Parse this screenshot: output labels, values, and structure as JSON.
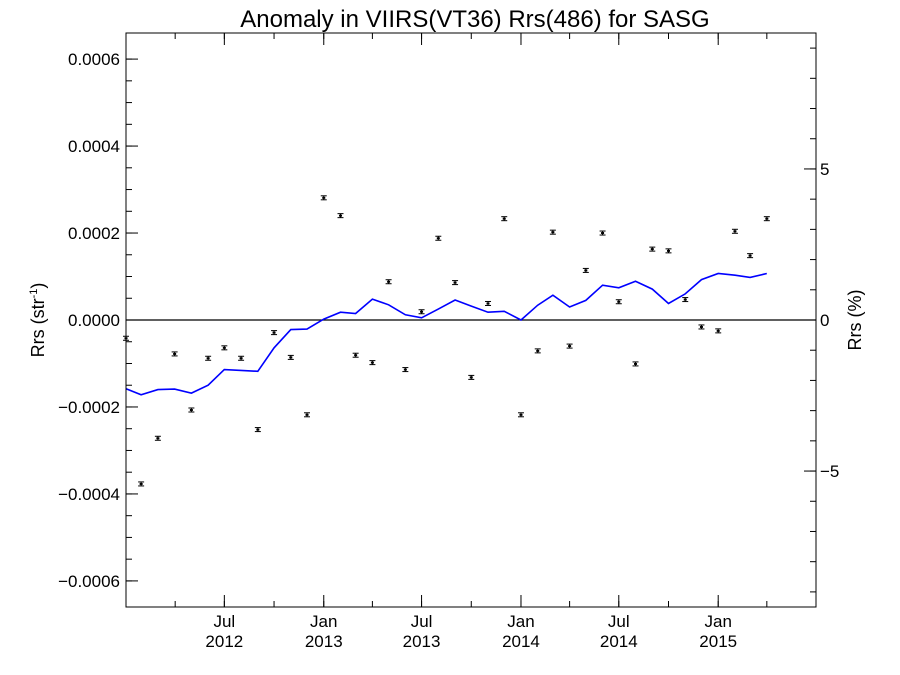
{
  "chart_data": {
    "type": "scatter",
    "title": "Anomaly in VIIRS(VT36) Rrs(486) for SASG",
    "ylabel": "Rrs (str",
    "ylabel_sup": "-1",
    "ylabel_close": ")",
    "y2label": "Rrs (%)",
    "xlim": [
      "2012-01-01",
      "2015-07-01"
    ],
    "ylim": [
      -0.00066,
      0.00066
    ],
    "y2lim": [
      -9.5,
      9.5
    ],
    "x_ticks": [
      {
        "date": "2012-07-01",
        "month": "Jul",
        "year": "2012"
      },
      {
        "date": "2013-01-01",
        "month": "Jan",
        "year": "2013"
      },
      {
        "date": "2013-07-01",
        "month": "Jul",
        "year": "2013"
      },
      {
        "date": "2014-01-01",
        "month": "Jan",
        "year": "2014"
      },
      {
        "date": "2014-07-01",
        "month": "Jul",
        "year": "2014"
      },
      {
        "date": "2015-01-01",
        "month": "Jan",
        "year": "2015"
      }
    ],
    "y_ticks": [
      {
        "value": 0.0006,
        "label": "0.0006"
      },
      {
        "value": 0.0004,
        "label": "0.0004"
      },
      {
        "value": 0.0002,
        "label": "0.0002"
      },
      {
        "value": 0.0,
        "label": "0.0000"
      },
      {
        "value": -0.0002,
        "label": "−0.0002"
      },
      {
        "value": -0.0004,
        "label": "−0.0004"
      },
      {
        "value": -0.0006,
        "label": "−0.0006"
      }
    ],
    "y2_ticks": [
      {
        "value": 5,
        "label": "5"
      },
      {
        "value": 0,
        "label": "0"
      },
      {
        "value": -5,
        "label": "−5"
      }
    ],
    "series": [
      {
        "kind": "points_with_error_bars",
        "color": "#000000",
        "points": [
          {
            "x": "2012-01-01",
            "y": -4.2e-05
          },
          {
            "x": "2012-01-29",
            "y": -0.000377
          },
          {
            "x": "2012-02-29",
            "y": -0.000272
          },
          {
            "x": "2012-03-31",
            "y": -7.8e-05
          },
          {
            "x": "2012-05-01",
            "y": -0.000207
          },
          {
            "x": "2012-06-01",
            "y": -8.8e-05
          },
          {
            "x": "2012-07-01",
            "y": -6.4e-05
          },
          {
            "x": "2012-08-01",
            "y": -8.8e-05
          },
          {
            "x": "2012-09-01",
            "y": -0.000252
          },
          {
            "x": "2012-10-01",
            "y": -2.9e-05
          },
          {
            "x": "2012-11-01",
            "y": -8.6e-05
          },
          {
            "x": "2012-12-01",
            "y": -0.000218
          },
          {
            "x": "2013-01-01",
            "y": 0.000281
          },
          {
            "x": "2013-02-01",
            "y": 0.00024
          },
          {
            "x": "2013-03-01",
            "y": -8.1e-05
          },
          {
            "x": "2013-04-01",
            "y": -9.8e-05
          },
          {
            "x": "2013-05-01",
            "y": 8.8e-05
          },
          {
            "x": "2013-06-01",
            "y": -0.000114
          },
          {
            "x": "2013-07-01",
            "y": 1.9e-05
          },
          {
            "x": "2013-08-01",
            "y": 0.000188
          },
          {
            "x": "2013-09-01",
            "y": 8.6e-05
          },
          {
            "x": "2013-10-01",
            "y": -0.000132
          },
          {
            "x": "2013-11-01",
            "y": 3.8e-05
          },
          {
            "x": "2013-12-01",
            "y": 0.000233
          },
          {
            "x": "2014-01-01",
            "y": -0.000218
          },
          {
            "x": "2014-02-01",
            "y": -7.1e-05
          },
          {
            "x": "2014-03-01",
            "y": 0.000202
          },
          {
            "x": "2014-04-01",
            "y": -6e-05
          },
          {
            "x": "2014-05-01",
            "y": 0.000114
          },
          {
            "x": "2014-06-01",
            "y": 0.0002
          },
          {
            "x": "2014-07-01",
            "y": 4.2e-05
          },
          {
            "x": "2014-08-01",
            "y": -0.000101
          },
          {
            "x": "2014-09-01",
            "y": 0.000163
          },
          {
            "x": "2014-10-01",
            "y": 0.000159
          },
          {
            "x": "2014-11-01",
            "y": 4.7e-05
          },
          {
            "x": "2014-12-01",
            "y": -1.6e-05
          },
          {
            "x": "2015-01-01",
            "y": -2.5e-05
          },
          {
            "x": "2015-02-01",
            "y": 0.000204
          },
          {
            "x": "2015-03-01",
            "y": 0.000148
          },
          {
            "x": "2015-04-01",
            "y": 0.000233
          }
        ]
      },
      {
        "kind": "line",
        "color": "#0000ff",
        "points": [
          {
            "x": "2012-01-01",
            "y": -0.000158
          },
          {
            "x": "2012-01-29",
            "y": -0.000172
          },
          {
            "x": "2012-02-29",
            "y": -0.00016
          },
          {
            "x": "2012-03-31",
            "y": -0.000159
          },
          {
            "x": "2012-05-01",
            "y": -0.000168
          },
          {
            "x": "2012-06-01",
            "y": -0.00015
          },
          {
            "x": "2012-07-01",
            "y": -0.000114
          },
          {
            "x": "2012-08-01",
            "y": -0.000116
          },
          {
            "x": "2012-09-01",
            "y": -0.000118
          },
          {
            "x": "2012-10-01",
            "y": -6.4e-05
          },
          {
            "x": "2012-11-01",
            "y": -2.2e-05
          },
          {
            "x": "2012-12-01",
            "y": -2.1e-05
          },
          {
            "x": "2013-01-01",
            "y": 2e-06
          },
          {
            "x": "2013-02-01",
            "y": 1.8e-05
          },
          {
            "x": "2013-03-01",
            "y": 1.5e-05
          },
          {
            "x": "2013-04-01",
            "y": 4.8e-05
          },
          {
            "x": "2013-05-01",
            "y": 3.5e-05
          },
          {
            "x": "2013-06-01",
            "y": 1.2e-05
          },
          {
            "x": "2013-07-01",
            "y": 5e-06
          },
          {
            "x": "2013-08-01",
            "y": 2.5e-05
          },
          {
            "x": "2013-09-01",
            "y": 4.6e-05
          },
          {
            "x": "2013-10-01",
            "y": 3.2e-05
          },
          {
            "x": "2013-11-01",
            "y": 1.8e-05
          },
          {
            "x": "2013-12-01",
            "y": 2e-05
          },
          {
            "x": "2014-01-01",
            "y": 0.0
          },
          {
            "x": "2014-02-01",
            "y": 3.4e-05
          },
          {
            "x": "2014-03-01",
            "y": 5.7e-05
          },
          {
            "x": "2014-04-01",
            "y": 3e-05
          },
          {
            "x": "2014-05-01",
            "y": 4.5e-05
          },
          {
            "x": "2014-06-01",
            "y": 8e-05
          },
          {
            "x": "2014-07-01",
            "y": 7.4e-05
          },
          {
            "x": "2014-08-01",
            "y": 8.9e-05
          },
          {
            "x": "2014-09-01",
            "y": 7.1e-05
          },
          {
            "x": "2014-10-01",
            "y": 3.8e-05
          },
          {
            "x": "2014-11-01",
            "y": 6e-05
          },
          {
            "x": "2014-12-01",
            "y": 9.3e-05
          },
          {
            "x": "2015-01-01",
            "y": 0.000107
          },
          {
            "x": "2015-02-01",
            "y": 0.000103
          },
          {
            "x": "2015-03-01",
            "y": 9.8e-05
          },
          {
            "x": "2015-04-01",
            "y": 0.000107
          }
        ]
      }
    ],
    "zero_line": true,
    "grid": false,
    "legend": "none"
  }
}
